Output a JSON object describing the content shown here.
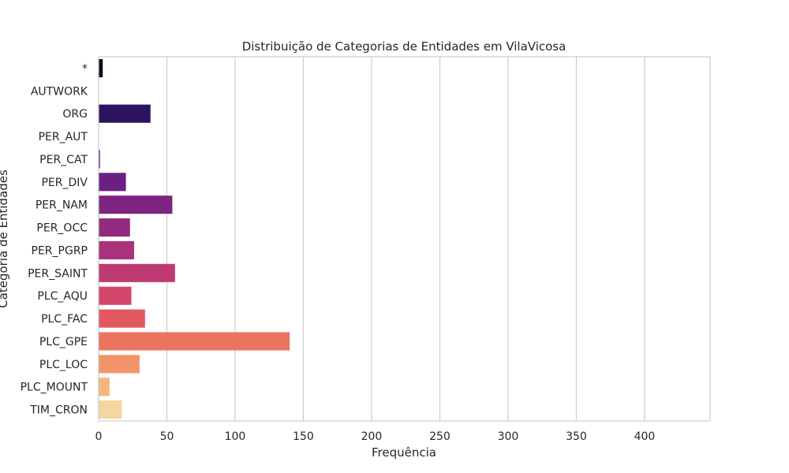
{
  "chart_data": {
    "type": "bar",
    "orientation": "horizontal",
    "title": "Distribuição de Categorias de Entidades em VilaVicosa",
    "xlabel": "Frequência",
    "ylabel": "Categoria de Entidades",
    "xlim": [
      0,
      448
    ],
    "xticks": [
      0,
      50,
      100,
      150,
      200,
      250,
      300,
      350,
      400
    ],
    "grid": "vertical",
    "palette": "magma",
    "categories": [
      "*",
      "AUTWORK",
      "ORG",
      "PER_AUT",
      "PER_CAT",
      "PER_DIV",
      "PER_NAM",
      "PER_OCC",
      "PER_PGRP",
      "PER_SAINT",
      "PLC_AQU",
      "PLC_FAC",
      "PLC_GPE",
      "PLC_LOC",
      "PLC_MOUNT",
      "TIM_CRON"
    ],
    "values": [
      3,
      0,
      38,
      0,
      1,
      20,
      54,
      23,
      26,
      56,
      24,
      34,
      140,
      30,
      8,
      17
    ],
    "colors": [
      "#0d0a1e",
      "#1c1141",
      "#2d1460",
      "#411474",
      "#55197d",
      "#6a2080",
      "#7e2581",
      "#932b80",
      "#a9327c",
      "#be3a73",
      "#d2466a",
      "#e2585f",
      "#ec7360",
      "#f3936b",
      "#f6b57e",
      "#f4d79e"
    ]
  }
}
